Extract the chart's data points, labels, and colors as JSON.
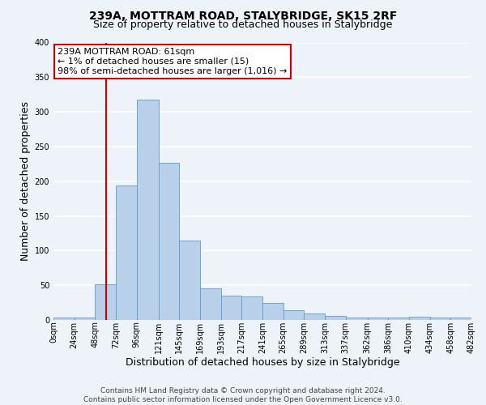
{
  "title": "239A, MOTTRAM ROAD, STALYBRIDGE, SK15 2RF",
  "subtitle": "Size of property relative to detached houses in Stalybridge",
  "xlabel": "Distribution of detached houses by size in Stalybridge",
  "ylabel": "Number of detached properties",
  "bin_edges": [
    0,
    24,
    48,
    72,
    96,
    121,
    145,
    169,
    193,
    217,
    241,
    265,
    289,
    313,
    337,
    362,
    386,
    410,
    434,
    458,
    482
  ],
  "bin_labels": [
    "0sqm",
    "24sqm",
    "48sqm",
    "72sqm",
    "96sqm",
    "121sqm",
    "145sqm",
    "169sqm",
    "193sqm",
    "217sqm",
    "241sqm",
    "265sqm",
    "289sqm",
    "313sqm",
    "337sqm",
    "362sqm",
    "386sqm",
    "410sqm",
    "434sqm",
    "458sqm",
    "482sqm"
  ],
  "bar_heights": [
    3,
    3,
    51,
    194,
    318,
    227,
    115,
    46,
    35,
    34,
    24,
    14,
    9,
    6,
    3,
    3,
    3,
    5,
    3,
    3
  ],
  "bar_color": "#b8d0ea",
  "bar_edge_color": "#5b9bd5",
  "vline_x": 61,
  "vline_color": "#cc0000",
  "annotation_title": "239A MOTTRAM ROAD: 61sqm",
  "annotation_line1": "← 1% of detached houses are smaller (15)",
  "annotation_line2": "98% of semi-detached houses are larger (1,016) →",
  "annotation_box_color": "#cc0000",
  "ylim": [
    0,
    400
  ],
  "yticks": [
    0,
    50,
    100,
    150,
    200,
    250,
    300,
    350,
    400
  ],
  "footer1": "Contains HM Land Registry data © Crown copyright and database right 2024.",
  "footer2": "Contains public sector information licensed under the Open Government Licence v3.0.",
  "bg_color": "#eef2f9",
  "grid_color": "#ffffff",
  "title_fontsize": 10,
  "subtitle_fontsize": 9,
  "axis_label_fontsize": 9,
  "tick_fontsize": 7,
  "footer_fontsize": 6.5,
  "ann_fontsize": 8
}
